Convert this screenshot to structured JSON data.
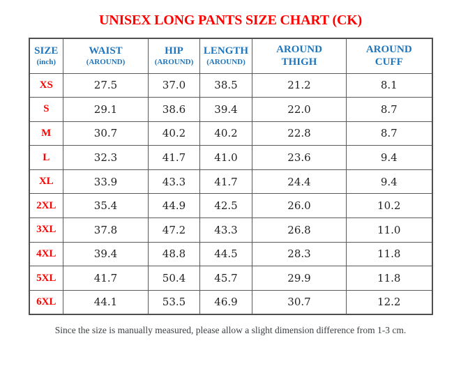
{
  "title": "UNISEX LONG PANTS SIZE CHART (CK)",
  "colors": {
    "title_red": "#fe0000",
    "header_blue": "#1e75bc",
    "size_red": "#fe0000",
    "value_text": "#1f1f1f",
    "border_gray": "#58595b",
    "note_text": "#3c4043"
  },
  "table": {
    "columns": [
      {
        "id": "size",
        "line1": "SIZE",
        "line2": "(inch)",
        "line2_small": true
      },
      {
        "id": "waist",
        "line1": "WAIST",
        "line2": "(AROUND)",
        "line2_small": true
      },
      {
        "id": "hip",
        "line1": "HIP",
        "line2": "(AROUND)",
        "line2_small": true
      },
      {
        "id": "length",
        "line1": "LENGTH",
        "line2": "(AROUND)",
        "line2_small": true
      },
      {
        "id": "around-thigh",
        "line1": "AROUND",
        "line2": "THIGH",
        "line2_small": false
      },
      {
        "id": "around-cuff",
        "line1": "AROUND",
        "line2": "CUFF",
        "line2_small": false
      }
    ],
    "rows": [
      {
        "size": "XS",
        "values": [
          "27.5",
          "37.0",
          "38.5",
          "21.2",
          "8.1"
        ]
      },
      {
        "size": "S",
        "values": [
          "29.1",
          "38.6",
          "39.4",
          "22.0",
          "8.7"
        ]
      },
      {
        "size": "M",
        "values": [
          "30.7",
          "40.2",
          "40.2",
          "22.8",
          "8.7"
        ]
      },
      {
        "size": "L",
        "values": [
          "32.3",
          "41.7",
          "41.0",
          "23.6",
          "9.4"
        ]
      },
      {
        "size": "XL",
        "values": [
          "33.9",
          "43.3",
          "41.7",
          "24.4",
          "9.4"
        ]
      },
      {
        "size": "2XL",
        "values": [
          "35.4",
          "44.9",
          "42.5",
          "26.0",
          "10.2"
        ]
      },
      {
        "size": "3XL",
        "values": [
          "37.8",
          "47.2",
          "43.3",
          "26.8",
          "11.0"
        ]
      },
      {
        "size": "4XL",
        "values": [
          "39.4",
          "48.8",
          "44.5",
          "28.3",
          "11.8"
        ]
      },
      {
        "size": "5XL",
        "values": [
          "41.7",
          "50.4",
          "45.7",
          "29.9",
          "11.8"
        ]
      },
      {
        "size": "6XL",
        "values": [
          "44.1",
          "53.5",
          "46.9",
          "30.7",
          "12.2"
        ]
      }
    ]
  },
  "note": "Since the size is manually measured, please allow a slight dimension difference from 1-3 cm."
}
